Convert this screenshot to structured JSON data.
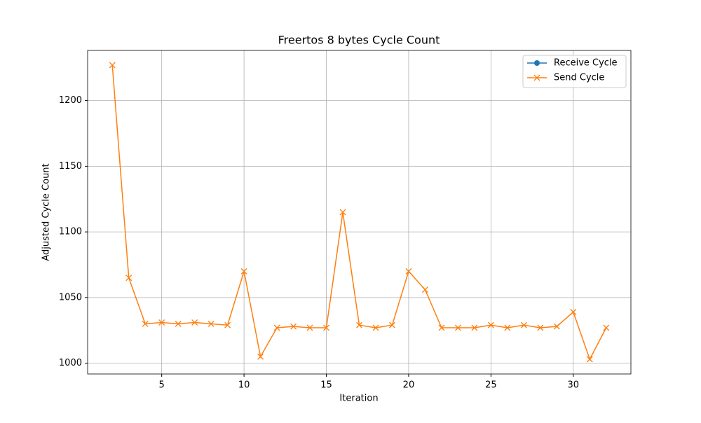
{
  "chart_data": {
    "type": "line",
    "title": "Freertos 8 bytes Cycle Count",
    "x_label": "Iteration",
    "y_label": "Adjusted Cycle Count",
    "x": [
      2,
      3,
      4,
      5,
      6,
      7,
      8,
      9,
      10,
      11,
      12,
      13,
      14,
      15,
      16,
      17,
      18,
      19,
      20,
      21,
      22,
      23,
      24,
      25,
      26,
      27,
      28,
      29,
      30,
      31,
      32
    ],
    "series": [
      {
        "name": "Receive Cycle",
        "color": "#1f77b4",
        "marker": "o",
        "values": [
          null,
          null,
          null,
          null,
          null,
          null,
          null,
          null,
          null,
          null,
          null,
          null,
          null,
          null,
          null,
          null,
          null,
          null,
          null,
          null,
          null,
          null,
          null,
          null,
          null,
          null,
          null,
          null,
          null,
          null,
          null
        ]
      },
      {
        "name": "Send Cycle",
        "color": "#ff7f0e",
        "marker": "x",
        "values": [
          1227,
          1065,
          1030,
          1031,
          1030,
          1031,
          1030,
          1029,
          1070,
          1005,
          1027,
          1028,
          1027,
          1027,
          1115,
          1029,
          1027,
          1029,
          1070,
          1056,
          1027,
          1027,
          1027,
          1029,
          1027,
          1029,
          1027,
          1028,
          1039,
          1003,
          1027
        ]
      }
    ],
    "xlim": [
      0.5,
      33.5
    ],
    "xticks": [
      5,
      10,
      15,
      20,
      25,
      30
    ],
    "ylim": [
      991.8,
      1238.2
    ],
    "yticks": [
      1000,
      1050,
      1100,
      1150,
      1200
    ],
    "grid": true,
    "legend": "upper right"
  }
}
